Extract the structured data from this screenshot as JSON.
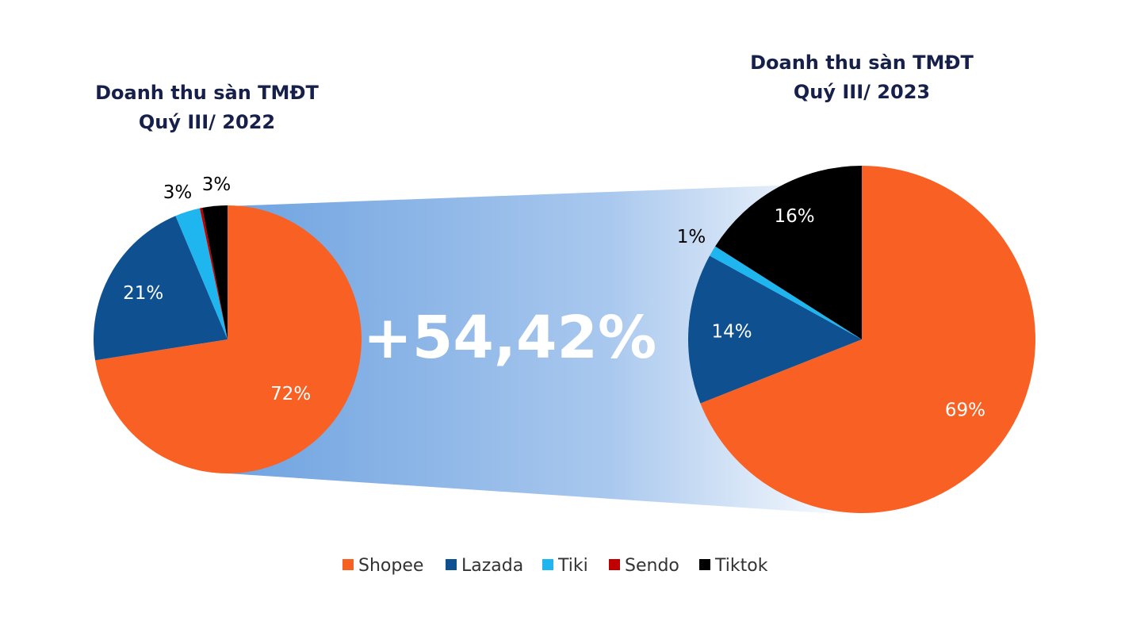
{
  "chart_data": [
    {
      "type": "pie",
      "title": "Doanh thu sàn TMĐT\nQuý III/ 2022",
      "title_lines": [
        "Doanh thu sàn TMĐT",
        "Quý III/ 2022"
      ],
      "slices": [
        {
          "name": "Shopee",
          "value": 72,
          "label": "72%"
        },
        {
          "name": "Lazada",
          "value": 21,
          "label": "21%"
        },
        {
          "name": "Tiki",
          "value": 3,
          "label": "3%"
        },
        {
          "name": "Sendo",
          "value": 0.3,
          "label": ""
        },
        {
          "name": "Tiktok",
          "value": 3,
          "label": "3%"
        }
      ]
    },
    {
      "type": "pie",
      "title": "Doanh thu sàn TMĐT\nQuý III/ 2023",
      "title_lines": [
        "Doanh thu sàn TMĐT",
        "Quý III/ 2023"
      ],
      "slices": [
        {
          "name": "Shopee",
          "value": 69,
          "label": "69%"
        },
        {
          "name": "Lazada",
          "value": 14,
          "label": "14%"
        },
        {
          "name": "Tiki",
          "value": 1,
          "label": "1%"
        },
        {
          "name": "Sendo",
          "value": 0,
          "label": ""
        },
        {
          "name": "Tiktok",
          "value": 16,
          "label": "16%"
        }
      ]
    }
  ],
  "growth_label": "+54,42%",
  "legend": [
    {
      "name": "Shopee",
      "color": "#f96124"
    },
    {
      "name": "Lazada",
      "color": "#0f5091"
    },
    {
      "name": "Tiki",
      "color": "#1fb6f0"
    },
    {
      "name": "Sendo",
      "color": "#c00000"
    },
    {
      "name": "Tiktok",
      "color": "#000000"
    }
  ],
  "colors": {
    "Shopee": "#f96124",
    "Lazada": "#0f5091",
    "Tiki": "#1fb6f0",
    "Sendo": "#c00000",
    "Tiktok": "#000000",
    "title": "#16204a",
    "band_start": "#6fa3e0",
    "band_end": "#ffffff"
  }
}
